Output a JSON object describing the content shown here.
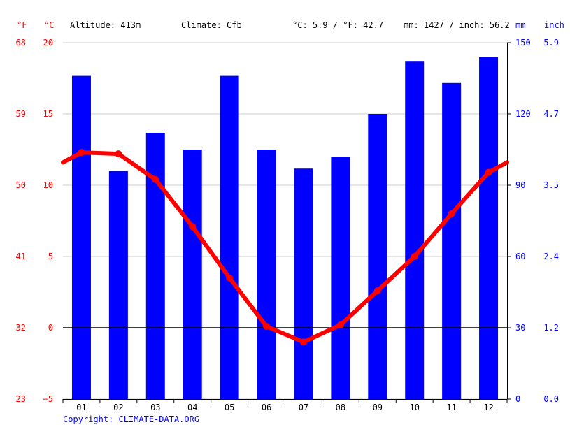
{
  "header": {
    "altitude": "Altitude: 413m",
    "climate": "Climate: Cfb",
    "avg_temp": "°C: 5.9 / °F: 42.7",
    "precip_total": "mm: 1427 / inch: 56.2"
  },
  "units": {
    "fahrenheit": "°F",
    "celsius": "°C",
    "mm": "mm",
    "inch": "inch"
  },
  "copyright": "Copyright: CLIMATE-DATA.ORG",
  "colors": {
    "temperature": "#ff0000",
    "precipitation": "#0000ff",
    "grid": "#cccccc",
    "zero_line": "#000000"
  },
  "chart_data": {
    "type": "bar",
    "categories": [
      "01",
      "02",
      "03",
      "04",
      "05",
      "06",
      "07",
      "08",
      "09",
      "10",
      "11",
      "12"
    ],
    "series": [
      {
        "type": "bar",
        "axis": "right",
        "values": [
          136,
          96,
          112,
          105,
          136,
          105,
          97,
          102,
          120,
          142,
          133,
          144
        ]
      },
      {
        "type": "line",
        "axis": "left",
        "values": [
          12.3,
          12.2,
          10.4,
          7.1,
          3.5,
          0.1,
          -1.0,
          0.2,
          2.6,
          5.0,
          8.0,
          10.9
        ]
      }
    ],
    "left_axis_celsius": {
      "ticks": [
        "20",
        "15",
        "10",
        "5",
        "0",
        "−5"
      ],
      "ylim": [
        -5,
        20
      ]
    },
    "left_axis_fahrenheit": {
      "ticks": [
        "68",
        "59",
        "50",
        "41",
        "32",
        "23"
      ]
    },
    "right_axis_mm": {
      "ticks": [
        "150",
        "120",
        "90",
        "60",
        "30",
        "0"
      ],
      "ylim": [
        0,
        150
      ]
    },
    "right_axis_inch": {
      "ticks": [
        "5.9",
        "4.7",
        "3.5",
        "2.4",
        "1.2",
        "0.0"
      ]
    },
    "grid": true
  }
}
